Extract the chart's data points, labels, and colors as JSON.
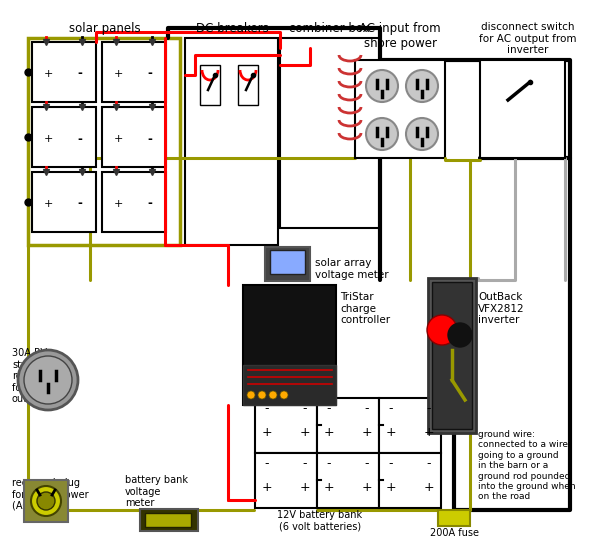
{
  "bg": "#ffffff",
  "red": "#ff0000",
  "black": "#000000",
  "yellow": "#999900",
  "gray": "#aaaaaa",
  "labels": {
    "solar_panels": "solar panels",
    "dc_breakers": "DC breakers",
    "combiner_box": "combiner box",
    "ac_input": "AC input from\nshore power",
    "disconnect": "disconnect switch\nfor AC output from\ninverter",
    "voltage_meter": "solar array\nvoltage meter",
    "charge_controller": "TriStar\ncharge\ncontroller",
    "outback": "OutBack\nVFX2812\ninverter",
    "rv_receptacle": "30A RV\nstyle\nreceptacle\nfor inverter\noutput",
    "recessed_plug": "recessed plug\nfor shore power\n(AC input)",
    "battery_bank": "battery bank\nvoltage\nmeter",
    "battery_12v": "12V battery bank\n(6 volt batteries)",
    "fuse_200a": "200A fuse",
    "ground_wire": "ground wire:\nconnected to a wire\ngoing to a ground\nin the barn or a\nground rod pounded\ninto the ground when\non the road"
  }
}
